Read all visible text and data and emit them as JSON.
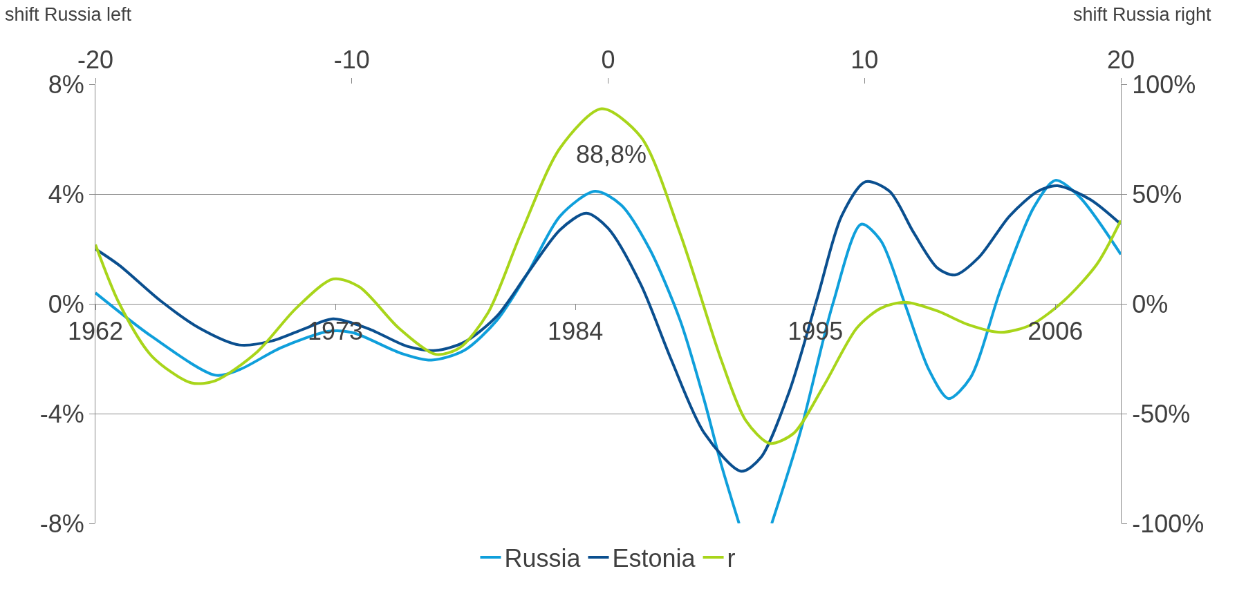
{
  "chart_data": {
    "type": "line",
    "xlim": [
      1962,
      2009
    ],
    "xticks": [
      1962,
      1973,
      1984,
      1995,
      2006
    ],
    "x2lim": [
      -20,
      20
    ],
    "x2ticks": [
      -20,
      -10,
      0,
      10,
      20
    ],
    "ylim": [
      -8,
      8
    ],
    "yticks": [
      {
        "value": -8,
        "label": "-8%"
      },
      {
        "value": -4,
        "label": "-4%"
      },
      {
        "value": 0,
        "label": "0%"
      },
      {
        "value": 4,
        "label": "4%"
      },
      {
        "value": 8,
        "label": "8%"
      }
    ],
    "y2lim": [
      -100,
      100
    ],
    "y2ticks": [
      {
        "value": -100,
        "label": "-100%"
      },
      {
        "value": -50,
        "label": "-50%"
      },
      {
        "value": 0,
        "label": "0%"
      },
      {
        "value": 50,
        "label": "50%"
      },
      {
        "value": 100,
        "label": "100%"
      }
    ],
    "grid": "y",
    "legend": "bottom",
    "marker": "none",
    "line_style": "solid",
    "annotations": [
      "shift Russia left",
      "shift Russia right",
      "88,8%"
    ],
    "series": [
      {
        "name": "Russia",
        "color": "#0f9fdb",
        "x": [
          1962,
          1964.6,
          1967.5,
          1968.6,
          1970.5,
          1972.7,
          1973.8,
          1976,
          1977.4,
          1978.9,
          1980.4,
          1981.8,
          1983.3,
          1984.9,
          1986.1,
          1987.4,
          1988.8,
          1989.9,
          1990.7,
          1991.5,
          1992.3,
          1993,
          1994.3,
          1995.8,
          1997.1,
          1998,
          1999.1,
          2000.2,
          2001.1,
          2002.1,
          2003.5,
          2005,
          2006,
          2007.1,
          2009
        ],
        "values": [
          0.4,
          -1.2,
          -2.6,
          -2.4,
          -1.6,
          -1.0,
          -1.05,
          -1.8,
          -2.05,
          -1.7,
          -0.6,
          1.1,
          3.2,
          4.1,
          3.6,
          2.0,
          -0.6,
          -3.5,
          -5.9,
          -8.0,
          null,
          -8.0,
          -4.7,
          0,
          2.9,
          2.3,
          0,
          -2.4,
          -3.45,
          -2.7,
          0.55,
          3.5,
          4.5,
          3.9,
          1.8
        ]
      },
      {
        "name": "Estonia",
        "color": "#0a4f8f",
        "x": [
          1962,
          1963.1,
          1965,
          1966.8,
          1968.6,
          1970.1,
          1971.6,
          1972.9,
          1974.5,
          1976.3,
          1977.6,
          1978.9,
          1980.4,
          1981.8,
          1983.3,
          1984.5,
          1985.5,
          1987,
          1988.4,
          1989.9,
          1991.6,
          1992.5,
          1993.8,
          1995.1,
          1996.2,
          1997.3,
          1998.4,
          1999.5,
          2000.6,
          2001.4,
          2002.5,
          2003.9,
          2005.2,
          2006.1,
          2007.6,
          2009
        ],
        "values": [
          2.0,
          1.4,
          0.1,
          -0.9,
          -1.5,
          -1.35,
          -0.9,
          -0.55,
          -0.9,
          -1.55,
          -1.7,
          -1.4,
          -0.45,
          1.1,
          2.7,
          3.3,
          2.75,
          0.7,
          -2.05,
          -4.7,
          -6.1,
          -5.6,
          -3.2,
          0.25,
          3.2,
          4.45,
          4.1,
          2.6,
          1.3,
          1.05,
          1.7,
          3.2,
          4.1,
          4.3,
          3.8,
          2.9
        ]
      },
      {
        "name": "r",
        "color": "#a8d51a",
        "axis": "y2",
        "x": [
          1962,
          1963.1,
          1964.6,
          1966.4,
          1967.5,
          1969.4,
          1971.2,
          1972.9,
          1974.1,
          1975.9,
          1977.6,
          1978.7,
          1980,
          1981.5,
          1983.3,
          1985.2,
          1987,
          1988.8,
          1990.7,
          1991.8,
          1992.9,
          1994,
          1995.4,
          1996.9,
          1998,
          1999.1,
          2000.6,
          2002,
          2003.5,
          2004.9,
          2006.4,
          2007.9,
          2009
        ],
        "values": [
          27,
          0,
          -24,
          -36,
          -35,
          -22,
          -2,
          11.3,
          7.7,
          -11,
          -23,
          -20,
          -4,
          32,
          71,
          88.8,
          76,
          32,
          -26,
          -53,
          -63.5,
          -59,
          -37,
          -11,
          -2,
          0.7,
          -3.3,
          -9.5,
          -13,
          -9.5,
          1.5,
          18,
          38
        ]
      }
    ]
  }
}
